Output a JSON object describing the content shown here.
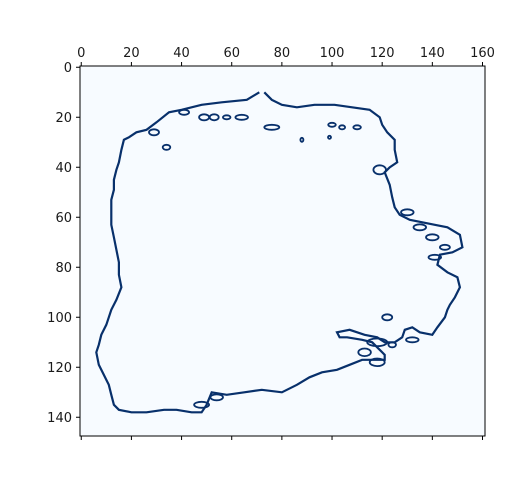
{
  "chart_data": {
    "type": "heatmap",
    "title": "",
    "xlabel": "",
    "ylabel": "",
    "xlim": [
      0,
      161
    ],
    "ylim": [
      147,
      0
    ],
    "x_ticks": [
      "0",
      "20",
      "40",
      "60",
      "80",
      "100",
      "120",
      "140",
      "160"
    ],
    "y_ticks": [
      "0",
      "20",
      "40",
      "60",
      "80",
      "100",
      "120",
      "140"
    ],
    "x_axis_position": "top",
    "grid": false,
    "legend": "none",
    "colormap": "Blues",
    "background_color": "#f7fbff",
    "contour_color": "#08306b",
    "contour": [
      [
        71,
        10
      ],
      [
        66,
        13
      ],
      [
        56,
        14
      ],
      [
        48,
        15
      ],
      [
        40,
        17
      ],
      [
        35,
        18
      ],
      [
        30,
        22
      ],
      [
        26,
        25
      ],
      [
        22,
        26
      ],
      [
        19,
        28
      ],
      [
        17,
        29
      ],
      [
        16,
        33
      ],
      [
        15,
        38
      ],
      [
        14,
        41
      ],
      [
        13,
        45
      ],
      [
        13,
        49
      ],
      [
        12,
        53
      ],
      [
        12,
        58
      ],
      [
        12,
        63
      ],
      [
        13,
        68
      ],
      [
        14,
        73
      ],
      [
        15,
        78
      ],
      [
        15,
        83
      ],
      [
        16,
        88
      ],
      [
        14,
        93
      ],
      [
        12,
        97
      ],
      [
        11,
        100
      ],
      [
        10,
        103
      ],
      [
        8,
        107
      ],
      [
        7,
        111
      ],
      [
        6,
        114
      ],
      [
        7,
        119
      ],
      [
        9,
        123
      ],
      [
        11,
        127
      ],
      [
        12,
        131
      ],
      [
        13,
        135
      ],
      [
        15,
        137
      ],
      [
        20,
        138
      ],
      [
        26,
        138
      ],
      [
        33,
        137
      ],
      [
        38,
        137
      ],
      [
        44,
        138
      ],
      [
        48,
        138
      ],
      [
        50,
        135
      ],
      [
        52,
        130
      ],
      [
        58,
        131
      ],
      [
        65,
        130
      ],
      [
        72,
        129
      ],
      [
        80,
        130
      ],
      [
        86,
        127
      ],
      [
        91,
        124
      ],
      [
        96,
        122
      ],
      [
        102,
        121
      ],
      [
        107,
        119
      ],
      [
        112,
        117
      ],
      [
        116,
        117
      ],
      [
        121,
        117
      ],
      [
        121,
        115
      ],
      [
        118,
        112
      ],
      [
        116,
        110
      ],
      [
        112,
        109
      ],
      [
        106,
        108
      ],
      [
        103,
        108
      ],
      [
        102,
        106
      ],
      [
        107,
        105
      ],
      [
        113,
        107
      ],
      [
        118,
        108
      ],
      [
        121,
        110
      ],
      [
        125,
        110
      ],
      [
        128,
        108
      ],
      [
        129,
        105
      ],
      [
        132,
        104
      ],
      [
        135,
        106
      ],
      [
        140,
        107
      ],
      [
        142,
        104
      ],
      [
        145,
        100
      ],
      [
        146,
        97
      ],
      [
        147,
        95
      ],
      [
        149,
        92
      ],
      [
        151,
        88
      ],
      [
        150,
        84
      ],
      [
        146,
        82
      ],
      [
        142,
        79
      ],
      [
        143,
        75
      ],
      [
        148,
        74
      ],
      [
        152,
        72
      ],
      [
        151,
        67
      ],
      [
        146,
        64
      ],
      [
        141,
        63
      ],
      [
        136,
        62
      ],
      [
        131,
        61
      ],
      [
        127,
        59
      ],
      [
        125,
        56
      ],
      [
        124,
        52
      ],
      [
        123,
        47
      ],
      [
        121,
        42
      ],
      [
        123,
        40
      ],
      [
        126,
        38
      ],
      [
        125,
        33
      ],
      [
        125,
        29
      ],
      [
        122,
        26
      ],
      [
        120,
        23
      ],
      [
        119,
        20
      ],
      [
        115,
        17
      ],
      [
        108,
        16
      ],
      [
        101,
        15
      ],
      [
        93,
        15
      ],
      [
        86,
        16
      ],
      [
        80,
        15
      ],
      [
        76,
        13
      ],
      [
        73,
        10
      ]
    ],
    "blobs": [
      [
        49,
        20,
        2,
        1.2
      ],
      [
        53,
        20,
        1.8,
        1.2
      ],
      [
        64,
        20,
        2.5,
        1
      ],
      [
        58,
        20,
        1.5,
        0.8
      ],
      [
        76,
        24,
        3,
        1
      ],
      [
        100,
        23,
        1.5,
        0.8
      ],
      [
        104,
        24,
        1.2,
        0.8
      ],
      [
        110,
        24,
        1.5,
        0.8
      ],
      [
        88,
        29,
        0.6,
        0.8
      ],
      [
        99,
        28,
        0.6,
        0.6
      ],
      [
        119,
        41,
        2.5,
        1.8
      ],
      [
        130,
        58,
        2.5,
        1.2
      ],
      [
        135,
        64,
        2.5,
        1.2
      ],
      [
        140,
        68,
        2.5,
        1.2
      ],
      [
        145,
        72,
        2,
        1
      ],
      [
        141,
        76,
        2.5,
        1
      ],
      [
        118,
        110,
        4,
        1.5
      ],
      [
        113,
        114,
        2.5,
        1.5
      ],
      [
        118,
        118,
        3,
        1.5
      ],
      [
        124,
        111,
        1.5,
        1
      ],
      [
        132,
        109,
        2.5,
        1
      ],
      [
        122,
        100,
        2,
        1.2
      ],
      [
        48,
        135,
        3,
        1.2
      ],
      [
        54,
        132,
        2.5,
        1.2
      ],
      [
        29,
        26,
        2,
        1.2
      ],
      [
        41,
        18,
        2,
        1
      ],
      [
        34,
        32,
        1.5,
        1
      ]
    ]
  }
}
